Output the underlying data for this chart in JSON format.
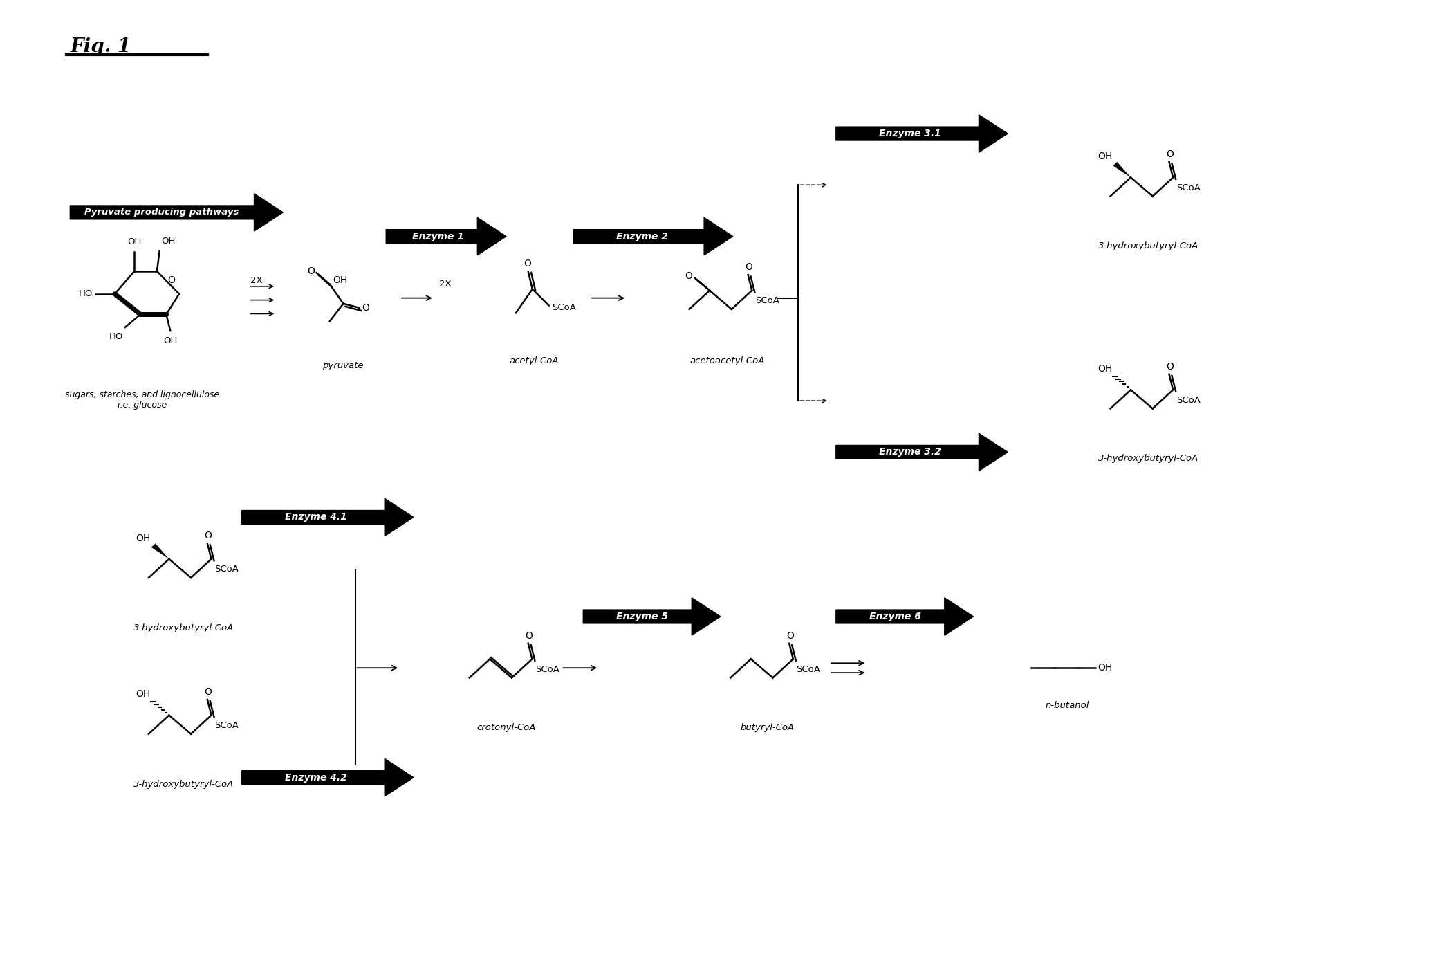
{
  "title": "Fig. 1",
  "background_color": "#ffffff",
  "enzyme_labels": {
    "pyruvate_pathway": "Pyruvate producing pathways",
    "enzyme1": "Enzyme 1",
    "enzyme2": "Enzyme 2",
    "enzyme31": "Enzyme 3.1",
    "enzyme32": "Enzyme 3.2",
    "enzyme41": "Enzyme 4.1",
    "enzyme42": "Enzyme 4.2",
    "enzyme5": "Enzyme 5",
    "enzyme6": "Enzyme 6"
  },
  "compound_labels": {
    "glucose": "sugars, starches, and lignocellulose\ni.e. glucose",
    "pyruvate": "pyruvate",
    "acetyl_coa": "acetyl-CoA",
    "acetoacetyl_coa": "acetoacetyl-CoA",
    "hydroxybutyryl_coa_s": "3-hydroxybutyryl-CoA",
    "hydroxybutyryl_coa_r": "3-hydroxybutyryl-CoA",
    "crotonyl_coa": "crotonyl-CoA",
    "butyryl_coa": "butyryl-CoA",
    "nbutanol": "n-butanol",
    "hydroxybutyryl_coa_top": "3-hydroxybutyryl-CoA",
    "hydroxybutyryl_coa_bot": "3-hydroxybutyryl-CoA"
  },
  "figsize": [
    20.75,
    13.83
  ],
  "dpi": 100
}
